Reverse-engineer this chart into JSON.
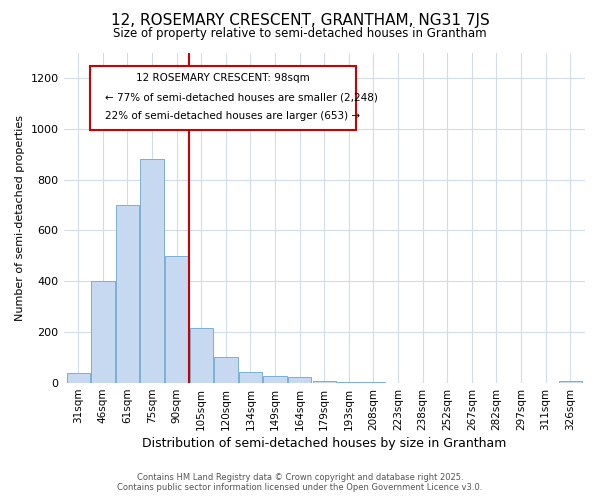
{
  "title": "12, ROSEMARY CRESCENT, GRANTHAM, NG31 7JS",
  "subtitle": "Size of property relative to semi-detached houses in Grantham",
  "xlabel": "Distribution of semi-detached houses by size in Grantham",
  "ylabel": "Number of semi-detached properties",
  "categories": [
    "31sqm",
    "46sqm",
    "61sqm",
    "75sqm",
    "90sqm",
    "105sqm",
    "120sqm",
    "134sqm",
    "149sqm",
    "164sqm",
    "179sqm",
    "193sqm",
    "208sqm",
    "223sqm",
    "238sqm",
    "252sqm",
    "267sqm",
    "282sqm",
    "297sqm",
    "311sqm",
    "326sqm"
  ],
  "values": [
    40,
    400,
    700,
    880,
    500,
    215,
    103,
    43,
    28,
    25,
    8,
    5,
    4,
    2,
    2,
    1,
    1,
    0,
    0,
    0,
    8
  ],
  "bar_color": "#c6d9f0",
  "bar_edge_color": "#7bafd4",
  "vline_color": "#cc0000",
  "annotation_title": "12 ROSEMARY CRESCENT: 98sqm",
  "annotation_line1": "← 77% of semi-detached houses are smaller (2,248)",
  "annotation_line2": "22% of semi-detached houses are larger (653) →",
  "annotation_color": "#cc0000",
  "ylim": [
    0,
    1300
  ],
  "yticks": [
    0,
    200,
    400,
    600,
    800,
    1000,
    1200
  ],
  "footer1": "Contains HM Land Registry data © Crown copyright and database right 2025.",
  "footer2": "Contains public sector information licensed under the Open Government Licence v3.0.",
  "bg_color": "#ffffff",
  "grid_color": "#d0dce8"
}
